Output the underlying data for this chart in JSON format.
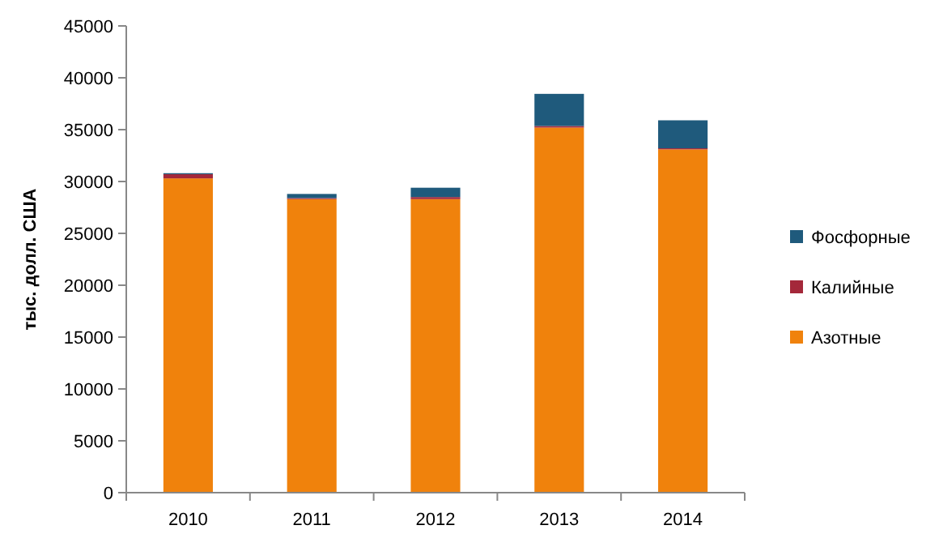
{
  "chart_data": {
    "type": "bar",
    "stacked": true,
    "ylabel": "тыс. долл. США",
    "categories": [
      "2010",
      "2011",
      "2012",
      "2013",
      "2014"
    ],
    "series": [
      {
        "name": "Азотные",
        "color": "#f0820c",
        "values": [
          30300,
          28300,
          28300,
          35200,
          33100
        ]
      },
      {
        "name": "Калийные",
        "color": "#a4283a",
        "values": [
          400,
          100,
          200,
          150,
          100
        ]
      },
      {
        "name": "Фосфорные",
        "color": "#1f5a7c",
        "values": [
          100,
          400,
          900,
          3100,
          2700
        ]
      }
    ],
    "ylim": [
      0,
      45000
    ],
    "yticks": [
      0,
      5000,
      10000,
      15000,
      20000,
      25000,
      30000,
      35000,
      40000,
      45000
    ],
    "grid": false,
    "legend": "right"
  }
}
